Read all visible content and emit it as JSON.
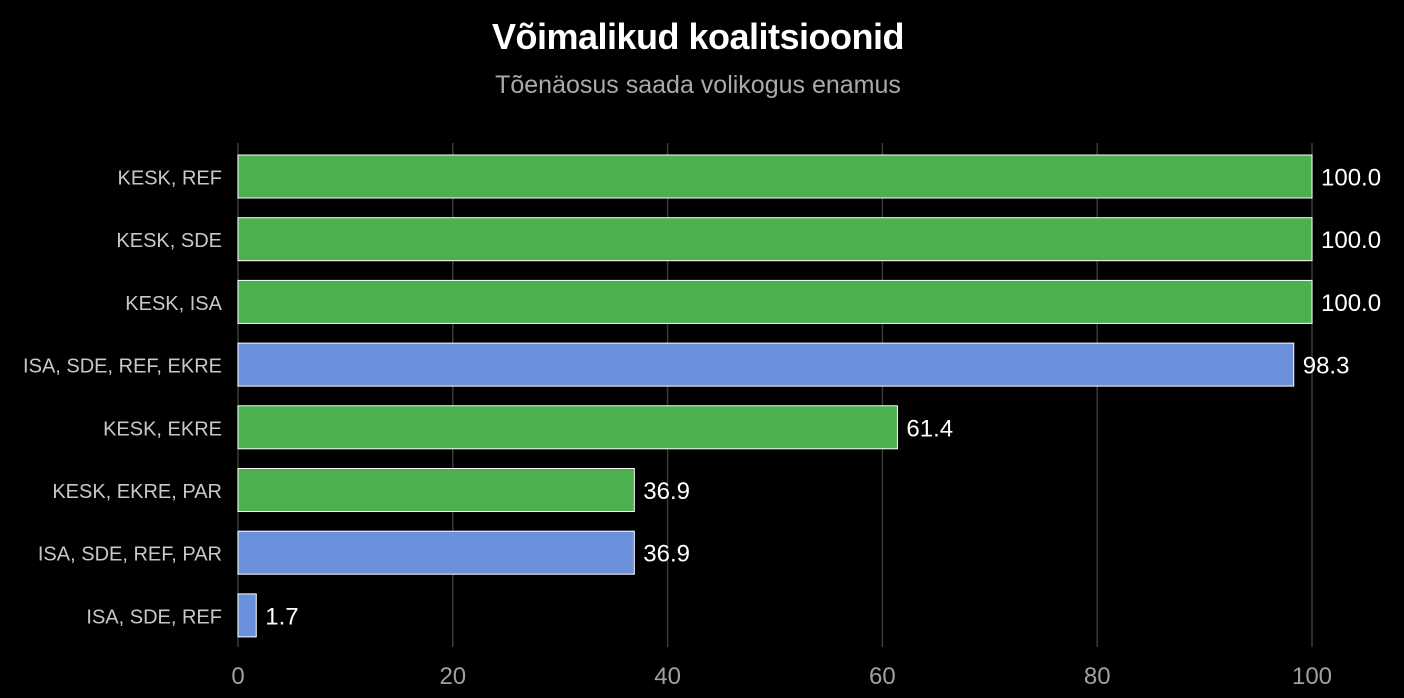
{
  "title": "Võimalikud koalitsioonid",
  "subtitle": "Tõenäosus saada volikogus enamus",
  "colors": {
    "background": "#000000",
    "grid": "#3a3a3a",
    "category_label": "#c8c8c8",
    "tick_label": "#a0a0a0",
    "value_label": "#ffffff"
  },
  "chart_data": {
    "type": "bar",
    "orientation": "horizontal",
    "title": "Võimalikud koalitsioonid",
    "subtitle": "Tõenäosus saada volikogus enamus",
    "xlabel": "",
    "ylabel": "",
    "xlim": [
      0,
      100
    ],
    "xticks": [
      0,
      20,
      40,
      60,
      80,
      100
    ],
    "grid": true,
    "legend": "none",
    "bars": [
      {
        "label": "KESK, REF",
        "value": 100.0,
        "value_label": "100.0",
        "color": "#4caf50"
      },
      {
        "label": "KESK, SDE",
        "value": 100.0,
        "value_label": "100.0",
        "color": "#4caf50"
      },
      {
        "label": "KESK, ISA",
        "value": 100.0,
        "value_label": "100.0",
        "color": "#4caf50"
      },
      {
        "label": "ISA, SDE, REF, EKRE",
        "value": 98.3,
        "value_label": "98.3",
        "color": "#6a8fdb"
      },
      {
        "label": "KESK, EKRE",
        "value": 61.4,
        "value_label": "61.4",
        "color": "#4caf50"
      },
      {
        "label": "KESK, EKRE, PAR",
        "value": 36.9,
        "value_label": "36.9",
        "color": "#4caf50"
      },
      {
        "label": "ISA, SDE, REF, PAR",
        "value": 36.9,
        "value_label": "36.9",
        "color": "#6a8fdb"
      },
      {
        "label": "ISA, SDE, REF",
        "value": 1.7,
        "value_label": "1.7",
        "color": "#6a8fdb"
      }
    ]
  }
}
